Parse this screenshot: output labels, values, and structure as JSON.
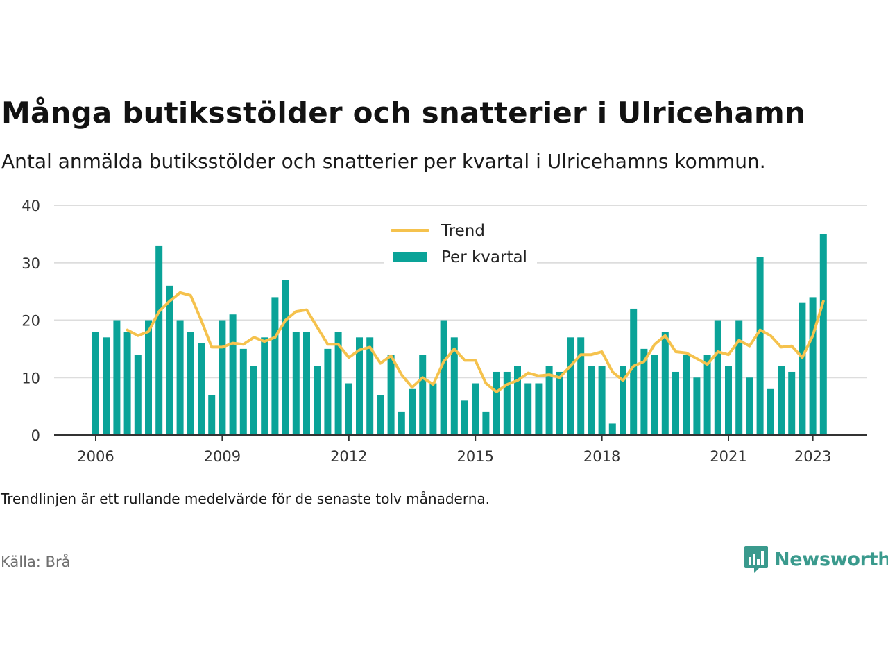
{
  "title": "Många butiksstölder och snatterier i Ulricehamn",
  "subtitle": "Antal anmälda butiksstölder och snatterier per kvartal i Ulricehamns kommun.",
  "note": "Trendlinjen är ett rullande medelvärde för de senaste tolv månaderna.",
  "source": "Källa: Brå",
  "brand": {
    "name": "Newsworthy",
    "icon": "newsworthy-logo-icon",
    "color": "#3a9a8d"
  },
  "colors": {
    "bars": "#0aa398",
    "trend": "#f5c24d",
    "grid": "#dddddd",
    "axis": "#333333"
  },
  "chart_data": {
    "type": "bar",
    "x_start": "2006 Q1",
    "ylim": [
      0,
      40
    ],
    "yticks": [
      0,
      10,
      20,
      30,
      40
    ],
    "xticks": [
      "2006",
      "2009",
      "2012",
      "2015",
      "2018",
      "2021",
      "2023"
    ],
    "legend": {
      "placement": "top-center"
    },
    "series": [
      {
        "name": "Per kvartal",
        "type": "bar",
        "values": [
          18,
          17,
          20,
          18,
          14,
          20,
          33,
          26,
          20,
          18,
          16,
          7,
          20,
          21,
          15,
          12,
          17,
          24,
          27,
          18,
          18,
          12,
          15,
          18,
          9,
          17,
          17,
          7,
          14,
          4,
          8,
          14,
          9,
          20,
          17,
          6,
          9,
          4,
          11,
          11,
          12,
          9,
          9,
          12,
          11,
          17,
          17,
          12,
          12,
          2,
          12,
          22,
          15,
          14,
          18,
          11,
          14,
          10,
          14,
          20,
          12,
          20,
          10,
          31,
          8,
          12,
          11,
          23,
          24,
          35
        ]
      },
      {
        "name": "Trend",
        "type": "line",
        "values": [
          null,
          null,
          null,
          18.3,
          17.3,
          18,
          21.5,
          23.3,
          24.8,
          24.3,
          20,
          15.3,
          15.3,
          16,
          15.8,
          17,
          16.3,
          17,
          20,
          21.5,
          21.8,
          18.8,
          15.8,
          15.8,
          13.5,
          14.8,
          15.3,
          12.5,
          13.8,
          10.5,
          8.3,
          10,
          8.8,
          12.8,
          15,
          13,
          13,
          9,
          7.5,
          8.8,
          9.5,
          10.8,
          10.3,
          10.5,
          10,
          12,
          14,
          14,
          14.5,
          11,
          9.5,
          12,
          12.8,
          15.8,
          17.3,
          14.5,
          14.3,
          13.3,
          12.3,
          14.5,
          14,
          16.5,
          15.5,
          18.3,
          17.3,
          15.3,
          15.5,
          13.5,
          17.3,
          23.3
        ]
      }
    ]
  }
}
